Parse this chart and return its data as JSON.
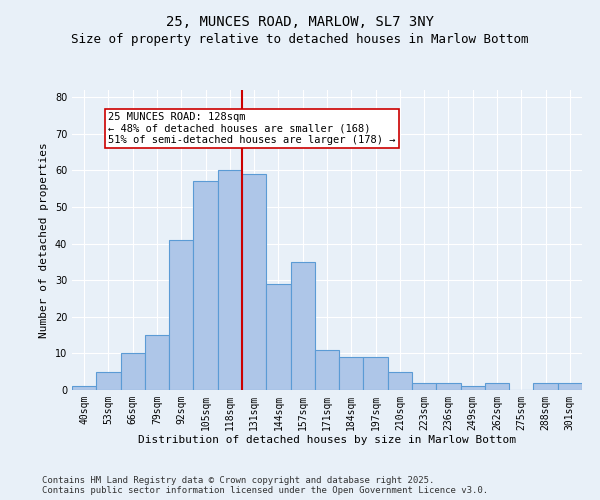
{
  "title1": "25, MUNCES ROAD, MARLOW, SL7 3NY",
  "title2": "Size of property relative to detached houses in Marlow Bottom",
  "xlabel": "Distribution of detached houses by size in Marlow Bottom",
  "ylabel": "Number of detached properties",
  "bins": [
    "40sqm",
    "53sqm",
    "66sqm",
    "79sqm",
    "92sqm",
    "105sqm",
    "118sqm",
    "131sqm",
    "144sqm",
    "157sqm",
    "171sqm",
    "184sqm",
    "197sqm",
    "210sqm",
    "223sqm",
    "236sqm",
    "249sqm",
    "262sqm",
    "275sqm",
    "288sqm",
    "301sqm"
  ],
  "values": [
    1,
    5,
    10,
    15,
    41,
    57,
    60,
    59,
    29,
    35,
    11,
    9,
    9,
    5,
    2,
    2,
    1,
    2,
    0,
    2,
    2
  ],
  "bar_color": "#aec6e8",
  "bar_edge_color": "#5b9bd5",
  "vline_color": "#cc0000",
  "annotation_line1": "25 MUNCES ROAD: 128sqm",
  "annotation_line2": "← 48% of detached houses are smaller (168)",
  "annotation_line3": "51% of semi-detached houses are larger (178) →",
  "annotation_box_color": "#ffffff",
  "annotation_box_edgecolor": "#cc0000",
  "ylim": [
    0,
    82
  ],
  "yticks": [
    0,
    10,
    20,
    30,
    40,
    50,
    60,
    70,
    80
  ],
  "bg_color": "#e8f0f8",
  "plot_bg_color": "#e8f0f8",
  "footer": "Contains HM Land Registry data © Crown copyright and database right 2025.\nContains public sector information licensed under the Open Government Licence v3.0.",
  "title_fontsize": 10,
  "subtitle_fontsize": 9,
  "axis_label_fontsize": 8,
  "tick_fontsize": 7,
  "footer_fontsize": 6.5,
  "annotation_fontsize": 7.5
}
